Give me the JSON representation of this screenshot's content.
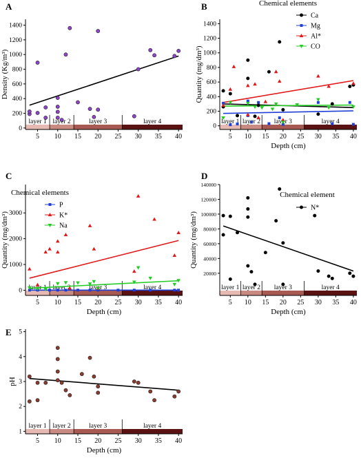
{
  "chart_data": [
    {
      "panel": "A",
      "type": "scatter",
      "xlabel": "",
      "ylabel": "Density (Kg/m³)",
      "xlim": [
        2,
        41
      ],
      "ylim": [
        -20,
        1480
      ],
      "xticks": [
        5,
        10,
        15,
        20,
        25,
        30,
        35,
        40
      ],
      "yticks": [
        0,
        200,
        400,
        600,
        800,
        1000,
        1200,
        1400
      ],
      "layers": [
        "layer 1",
        "layer 2",
        "layer 3",
        "layer 4"
      ],
      "series": [
        {
          "marker": "circle",
          "color": "#8e44c8",
          "x": [
            3,
            3,
            5,
            5,
            7,
            7,
            10,
            10,
            10,
            10,
            11,
            12,
            13,
            15,
            18,
            19,
            20,
            20,
            29,
            30,
            33,
            34,
            39,
            40
          ],
          "y": [
            190,
            225,
            205,
            890,
            280,
            140,
            410,
            290,
            220,
            140,
            110,
            1000,
            1360,
            350,
            260,
            150,
            1320,
            250,
            160,
            800,
            1060,
            990,
            980,
            1050
          ]
        }
      ],
      "trend": [
        {
          "color": "#000000",
          "x": [
            3,
            40
          ],
          "y": [
            310,
            980
          ]
        }
      ]
    },
    {
      "panel": "B",
      "type": "scatter",
      "xlabel": "Depth (cm)",
      "ylabel": "Quantity (mg/dm³)",
      "xlim": [
        2,
        41
      ],
      "ylim": [
        -50,
        1460
      ],
      "xticks": [
        5,
        10,
        15,
        20,
        25,
        30,
        35,
        40
      ],
      "yticks": [
        0,
        200,
        400,
        600,
        800,
        1000,
        1200,
        1400
      ],
      "legend_title": "Chemical elements",
      "legend_position": "top-right",
      "layers": [
        "layer 1",
        "layer 2",
        "layer 3",
        "layer 4"
      ],
      "series": [
        {
          "name": "Ca",
          "marker": "circle",
          "color": "#000000",
          "x": [
            3,
            3,
            5,
            7,
            10,
            10,
            12,
            13,
            16,
            19,
            20,
            30,
            34,
            39,
            40
          ],
          "y": [
            480,
            260,
            440,
            140,
            900,
            650,
            130,
            280,
            740,
            1150,
            220,
            160,
            300,
            540,
            560
          ]
        },
        {
          "name": "Mg",
          "marker": "square",
          "color": "#1f3fd6",
          "x": [
            3,
            5,
            7,
            10,
            10,
            11,
            13,
            16,
            19,
            20,
            30,
            34,
            39,
            40
          ],
          "y": [
            310,
            15,
            25,
            340,
            140,
            50,
            320,
            30,
            110,
            20,
            320,
            30,
            320,
            20
          ]
        },
        {
          "name": "Al*",
          "marker": "triangle-up",
          "color": "#e01a1a",
          "x": [
            3,
            5,
            6,
            10,
            10,
            12,
            13,
            15,
            18,
            19,
            20,
            30,
            33,
            40
          ],
          "y": [
            280,
            500,
            810,
            550,
            150,
            570,
            110,
            330,
            740,
            610,
            80,
            680,
            540,
            580
          ]
        },
        {
          "name": "CO",
          "marker": "triangle-down",
          "color": "#22cc22",
          "x": [
            3,
            5,
            10,
            12,
            14,
            17,
            18,
            20,
            24,
            30,
            33,
            40
          ],
          "y": [
            110,
            320,
            310,
            260,
            250,
            230,
            300,
            50,
            290,
            360,
            250,
            260
          ]
        }
      ],
      "trend": [
        {
          "color": "#000000",
          "x": [
            3,
            40
          ],
          "y": [
            300,
            250
          ]
        },
        {
          "color": "#e01a1a",
          "x": [
            3,
            40
          ],
          "y": [
            320,
            620
          ]
        },
        {
          "color": "#22cc22",
          "x": [
            3,
            40
          ],
          "y": [
            270,
            285
          ]
        },
        {
          "color": "#1f3fd6",
          "x": [
            3,
            40
          ],
          "y": [
            170,
            205
          ]
        }
      ]
    },
    {
      "panel": "C",
      "type": "scatter",
      "xlabel": "Depth (cm)",
      "ylabel": "Quantity (mg/dm³)",
      "xlim": [
        2,
        41
      ],
      "ylim": [
        -200,
        4100
      ],
      "xticks": [
        5,
        10,
        15,
        20,
        25,
        30,
        35,
        40
      ],
      "yticks": [
        0,
        1000,
        2000,
        3000
      ],
      "legend_title": "Chemical elements",
      "legend_position": "top-left",
      "layers": [
        "layer 1",
        "layer 2",
        "layer 3",
        "layer 4"
      ],
      "series": [
        {
          "name": "P",
          "marker": "square",
          "color": "#1f3fd6",
          "x": [
            3,
            5,
            8,
            10,
            12,
            15,
            18,
            20,
            25,
            29,
            33,
            39,
            40
          ],
          "y": [
            5,
            5,
            5,
            5,
            5,
            5,
            5,
            5,
            5,
            5,
            5,
            5,
            5
          ]
        },
        {
          "name": "K*",
          "marker": "triangle-up",
          "color": "#e01a1a",
          "x": [
            3,
            5,
            7,
            8,
            10,
            10,
            12,
            13,
            18,
            19,
            20,
            29,
            30,
            34,
            39,
            40
          ],
          "y": [
            820,
            210,
            1480,
            1600,
            1900,
            1480,
            2150,
            80,
            2500,
            1600,
            80,
            730,
            3650,
            2750,
            1350,
            2230
          ]
        },
        {
          "name": "Na",
          "marker": "triangle-down",
          "color": "#22cc22",
          "x": [
            3,
            5,
            7,
            10,
            12,
            15,
            18,
            19,
            20,
            29,
            30,
            33,
            39,
            40
          ],
          "y": [
            100,
            60,
            40,
            260,
            300,
            290,
            250,
            340,
            80,
            320,
            880,
            470,
            230,
            380
          ]
        }
      ],
      "trend": [
        {
          "color": "#e01a1a",
          "x": [
            3,
            40
          ],
          "y": [
            470,
            1930
          ]
        },
        {
          "color": "#22cc22",
          "x": [
            3,
            40
          ],
          "y": [
            80,
            370
          ]
        },
        {
          "color": "#1f3fd6",
          "x": [
            3,
            40
          ],
          "y": [
            5,
            5
          ]
        }
      ]
    },
    {
      "panel": "D",
      "type": "scatter",
      "xlabel": "Depth (cm)",
      "ylabel": "Quantity (mg/dm³)",
      "xlim": [
        2,
        41
      ],
      "ylim": [
        -10000,
        140000
      ],
      "xticks": [
        5,
        10,
        15,
        20,
        25,
        30,
        35,
        40
      ],
      "yticks": [
        20000,
        40000,
        60000,
        80000,
        100000,
        120000,
        140000
      ],
      "legend_title": "Chemical element",
      "legend_position": "top-right",
      "layers": [
        "layer 1",
        "layer 2",
        "layer 3",
        "layer 4"
      ],
      "series": [
        {
          "name": "N*",
          "marker": "circle",
          "color": "#000000",
          "x": [
            3,
            3,
            5,
            5,
            7,
            10,
            10,
            10,
            10,
            11,
            12,
            15,
            18,
            19,
            20,
            20,
            29,
            30,
            33,
            34,
            39,
            40
          ],
          "y": [
            98000,
            72000,
            97000,
            12000,
            75000,
            122000,
            107000,
            96000,
            30000,
            22000,
            5000,
            48000,
            91000,
            134000,
            61000,
            5000,
            98000,
            23000,
            16000,
            13000,
            20000,
            16000
          ]
        }
      ],
      "trend": [
        {
          "color": "#000000",
          "x": [
            3,
            40
          ],
          "y": [
            84000,
            23000
          ]
        }
      ]
    },
    {
      "panel": "E",
      "type": "scatter",
      "xlabel": "Depth (cm)",
      "ylabel": "pH",
      "xlim": [
        2,
        41
      ],
      "ylim": [
        0.9,
        5.1
      ],
      "xticks": [
        5,
        10,
        15,
        20,
        25,
        30,
        35,
        40
      ],
      "yticks": [
        1,
        2,
        3,
        4,
        5
      ],
      "layers": [
        "layer 1",
        "layer 2",
        "layer 3",
        "layer 4"
      ],
      "series": [
        {
          "marker": "circle",
          "color": "#8b3a2e",
          "x": [
            3,
            3,
            5,
            5,
            7,
            10,
            10,
            10,
            10,
            11,
            12,
            13,
            16,
            18,
            19,
            20,
            20,
            29,
            30,
            33,
            34,
            39,
            40
          ],
          "y": [
            3.2,
            2.2,
            2.95,
            2.25,
            2.95,
            4.35,
            3.9,
            3.4,
            3.05,
            2.95,
            2.65,
            2.45,
            3.3,
            3.95,
            3.2,
            2.8,
            2.55,
            3.0,
            2.95,
            2.6,
            2.25,
            2.4,
            2.6
          ]
        }
      ],
      "trend": [
        {
          "color": "#000000",
          "x": [
            3,
            40
          ],
          "y": [
            3.12,
            2.65
          ]
        }
      ]
    }
  ]
}
